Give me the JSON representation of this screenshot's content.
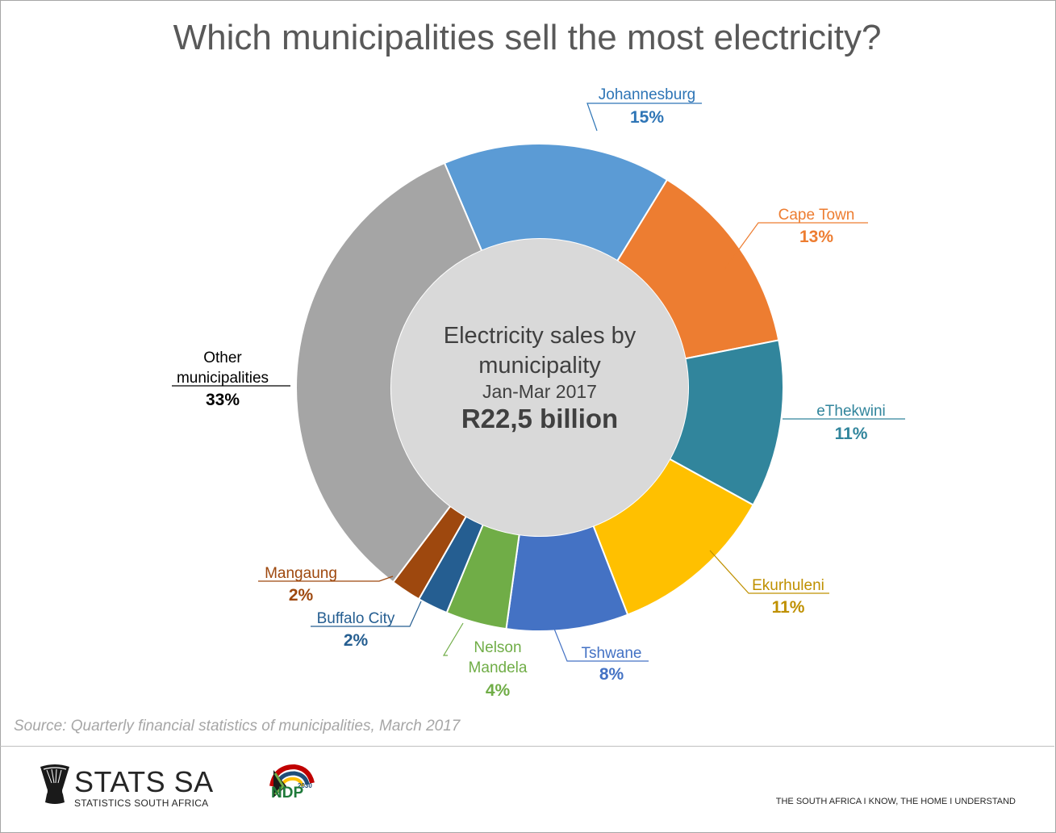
{
  "title": "Which municipalities sell the most electricity?",
  "chart_data": {
    "type": "pie",
    "variant": "donut",
    "center_text": {
      "line1": "Electricity sales by",
      "line2": "municipality",
      "period": "Jan-Mar 2017",
      "total": "R22,5 billion"
    },
    "series": [
      {
        "name": "Johannesburg",
        "value": 15,
        "label": "15%",
        "color": "#5b9bd5"
      },
      {
        "name": "Cape Town",
        "value": 13,
        "label": "13%",
        "color": "#ed7d31"
      },
      {
        "name": "eThekwini",
        "value": 11,
        "label": "11%",
        "color": "#31859c"
      },
      {
        "name": "Ekurhuleni",
        "value": 11,
        "label": "11%",
        "color": "#ffc000"
      },
      {
        "name": "Tshwane",
        "value": 8,
        "label": "8%",
        "color": "#4472c4"
      },
      {
        "name": "Nelson Mandela",
        "value": 4,
        "label": "4%",
        "color": "#70ad47"
      },
      {
        "name": "Buffalo City",
        "value": 2,
        "label": "2%",
        "color": "#255e91"
      },
      {
        "name": "Mangaung",
        "value": 2,
        "label": "2%",
        "color": "#9e480e"
      },
      {
        "name": "Other municipalities",
        "value": 33,
        "label": "33%",
        "color": "#a5a5a5"
      }
    ],
    "label_colors": [
      "#2e75b6",
      "#ed7d31",
      "#31859c",
      "#bf9000",
      "#4472c4",
      "#70ad47",
      "#255e91",
      "#9e480e",
      "#000000"
    ]
  },
  "source": "Source: Quarterly financial statistics of municipalities, March 2017",
  "footer": {
    "brand_name": "STATS SA",
    "brand_sub": "STATISTICS SOUTH AFRICA",
    "ndp": "NDP",
    "ndp_year": "2030",
    "tagline": "THE SOUTH AFRICA I KNOW, THE HOME I UNDERSTAND"
  }
}
